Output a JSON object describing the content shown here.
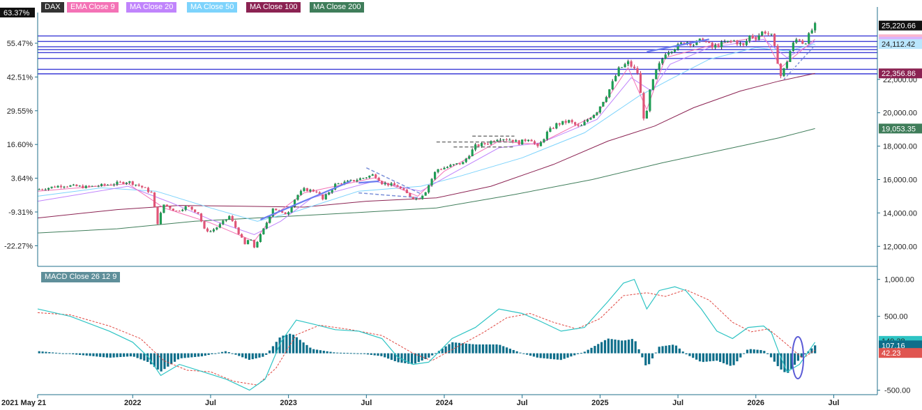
{
  "chart_data": [
    {
      "type": "candlestick",
      "symbol": "DAX",
      "legend": [
        {
          "label": "DAX",
          "color": "#333333"
        },
        {
          "label": "EMA  Close 9",
          "color": "#f472b6"
        },
        {
          "label": "MA  Close 20",
          "color": "#c084fc"
        },
        {
          "label": "MA  Close 50",
          "color": "#7dd3fc"
        },
        {
          "label": "MA  Close 100",
          "color": "#8b2252"
        },
        {
          "label": "MA  Close 200",
          "color": "#3f7d5a"
        }
      ],
      "y_right_ticks": [
        "12,000.00",
        "14,000.00",
        "16,000.00",
        "18,000.00",
        "20,000.00",
        "22,000.00"
      ],
      "y_left_ticks": [
        "55.47%",
        "42.51%",
        "29.55%",
        "16.60%",
        "3.64%",
        "-9.31%",
        "-22.27%"
      ],
      "ylim": [
        10800,
        26000
      ],
      "x_ticks": [
        {
          "label": "2021 May 21",
          "t": 2021.39
        },
        {
          "label": "2022",
          "t": 2022.0
        },
        {
          "label": "Jul",
          "t": 2022.5
        },
        {
          "label": "2023",
          "t": 2023.0
        },
        {
          "label": "Jul",
          "t": 2023.5
        },
        {
          "label": "2024",
          "t": 2024.0
        },
        {
          "label": "Jul",
          "t": 2024.5
        },
        {
          "label": "2025",
          "t": 2025.0
        },
        {
          "label": "Jul",
          "t": 2025.5
        },
        {
          "label": "2026",
          "t": 2026.0
        },
        {
          "label": "Jul",
          "t": 2026.5
        }
      ],
      "xlim": [
        2021.39,
        2026.78
      ],
      "close_path": [
        [
          2021.39,
          15400
        ],
        [
          2021.55,
          15650
        ],
        [
          2021.7,
          15550
        ],
        [
          2021.85,
          15700
        ],
        [
          2021.97,
          15880
        ],
        [
          2022.05,
          15600
        ],
        [
          2022.12,
          15200
        ],
        [
          2022.16,
          13400
        ],
        [
          2022.2,
          14500
        ],
        [
          2022.28,
          14100
        ],
        [
          2022.35,
          14400
        ],
        [
          2022.42,
          14000
        ],
        [
          2022.46,
          13000
        ],
        [
          2022.5,
          12900
        ],
        [
          2022.55,
          13200
        ],
        [
          2022.62,
          13800
        ],
        [
          2022.68,
          12800
        ],
        [
          2022.72,
          12100
        ],
        [
          2022.75,
          12500
        ],
        [
          2022.78,
          11950
        ],
        [
          2022.8,
          12300
        ],
        [
          2022.85,
          13200
        ],
        [
          2022.9,
          14300
        ],
        [
          2022.97,
          13900
        ],
        [
          2023.0,
          14100
        ],
        [
          2023.05,
          15000
        ],
        [
          2023.1,
          15400
        ],
        [
          2023.18,
          15300
        ],
        [
          2023.22,
          14800
        ],
        [
          2023.3,
          15700
        ],
        [
          2023.4,
          15900
        ],
        [
          2023.48,
          16100
        ],
        [
          2023.55,
          16300
        ],
        [
          2023.6,
          15800
        ],
        [
          2023.7,
          15600
        ],
        [
          2023.78,
          15000
        ],
        [
          2023.83,
          14800
        ],
        [
          2023.88,
          15300
        ],
        [
          2023.95,
          16600
        ],
        [
          2024.0,
          16700
        ],
        [
          2024.07,
          16900
        ],
        [
          2024.12,
          17000
        ],
        [
          2024.2,
          18000
        ],
        [
          2024.28,
          18200
        ],
        [
          2024.35,
          18500
        ],
        [
          2024.42,
          18400
        ],
        [
          2024.48,
          18200
        ],
        [
          2024.55,
          18500
        ],
        [
          2024.6,
          17900
        ],
        [
          2024.66,
          18800
        ],
        [
          2024.72,
          19300
        ],
        [
          2024.8,
          19500
        ],
        [
          2024.87,
          19100
        ],
        [
          2024.92,
          19600
        ],
        [
          2024.98,
          20100
        ],
        [
          2025.05,
          21200
        ],
        [
          2025.12,
          22600
        ],
        [
          2025.18,
          23000
        ],
        [
          2025.24,
          22400
        ],
        [
          2025.27,
          20500
        ],
        [
          2025.29,
          19000
        ],
        [
          2025.31,
          21000
        ],
        [
          2025.36,
          22500
        ],
        [
          2025.42,
          23600
        ],
        [
          2025.5,
          24000
        ],
        [
          2025.55,
          24300
        ],
        [
          2025.6,
          24100
        ],
        [
          2025.66,
          24400
        ],
        [
          2025.72,
          23900
        ],
        [
          2025.8,
          24200
        ],
        [
          2025.86,
          24300
        ],
        [
          2025.92,
          24000
        ],
        [
          2025.96,
          24600
        ],
        [
          2026.0,
          24500
        ],
        [
          2026.05,
          24900
        ],
        [
          2026.1,
          24600
        ],
        [
          2026.13,
          23500
        ],
        [
          2026.16,
          22200
        ],
        [
          2026.19,
          22800
        ],
        [
          2026.23,
          24000
        ],
        [
          2026.27,
          24500
        ],
        [
          2026.31,
          24100
        ],
        [
          2026.35,
          24800
        ],
        [
          2026.38,
          25220
        ]
      ],
      "ema9": [
        [
          2021.39,
          15300
        ],
        [
          2021.97,
          15750
        ],
        [
          2022.2,
          14300
        ],
        [
          2022.5,
          13400
        ],
        [
          2022.78,
          12300
        ],
        [
          2022.9,
          13800
        ],
        [
          2023.1,
          15200
        ],
        [
          2023.55,
          16100
        ],
        [
          2023.83,
          15000
        ],
        [
          2024.0,
          16500
        ],
        [
          2024.35,
          18300
        ],
        [
          2024.6,
          18100
        ],
        [
          2024.98,
          19900
        ],
        [
          2025.18,
          22700
        ],
        [
          2025.3,
          20200
        ],
        [
          2025.42,
          23300
        ],
        [
          2025.7,
          24000
        ],
        [
          2026.05,
          24600
        ],
        [
          2026.16,
          22700
        ],
        [
          2026.38,
          24401.57
        ]
      ],
      "ma20": [
        [
          2021.39,
          14700
        ],
        [
          2021.97,
          15600
        ],
        [
          2022.25,
          14600
        ],
        [
          2022.5,
          13600
        ],
        [
          2022.78,
          12700
        ],
        [
          2022.95,
          13500
        ],
        [
          2023.15,
          14900
        ],
        [
          2023.55,
          15900
        ],
        [
          2023.85,
          15300
        ],
        [
          2024.02,
          16200
        ],
        [
          2024.35,
          17900
        ],
        [
          2024.62,
          18200
        ],
        [
          2024.98,
          19600
        ],
        [
          2025.2,
          22100
        ],
        [
          2025.33,
          21300
        ],
        [
          2025.45,
          22900
        ],
        [
          2025.7,
          23900
        ],
        [
          2026.05,
          24400
        ],
        [
          2026.2,
          23300
        ],
        [
          2026.38,
          24256.56
        ]
      ],
      "ma50": [
        [
          2021.39,
          15000
        ],
        [
          2021.8,
          15500
        ],
        [
          2022.15,
          15300
        ],
        [
          2022.5,
          14300
        ],
        [
          2022.8,
          13500
        ],
        [
          2023.05,
          14100
        ],
        [
          2023.45,
          15300
        ],
        [
          2023.85,
          15600
        ],
        [
          2024.1,
          16200
        ],
        [
          2024.5,
          17300
        ],
        [
          2024.9,
          18800
        ],
        [
          2025.25,
          21000
        ],
        [
          2025.45,
          22000
        ],
        [
          2025.7,
          23200
        ],
        [
          2026.0,
          23900
        ],
        [
          2026.2,
          23700
        ],
        [
          2026.38,
          24112.42
        ]
      ],
      "ma100": [
        [
          2021.39,
          13700
        ],
        [
          2021.9,
          14200
        ],
        [
          2022.3,
          14450
        ],
        [
          2022.7,
          14400
        ],
        [
          2023.1,
          14350
        ],
        [
          2023.5,
          14700
        ],
        [
          2023.95,
          14900
        ],
        [
          2024.3,
          15600
        ],
        [
          2024.7,
          16900
        ],
        [
          2025.05,
          18300
        ],
        [
          2025.35,
          19200
        ],
        [
          2025.6,
          20300
        ],
        [
          2025.9,
          21300
        ],
        [
          2026.15,
          21900
        ],
        [
          2026.38,
          22356.86
        ]
      ],
      "ma200": [
        [
          2021.39,
          12800
        ],
        [
          2021.9,
          13050
        ],
        [
          2022.4,
          13500
        ],
        [
          2022.9,
          13750
        ],
        [
          2023.4,
          14000
        ],
        [
          2023.95,
          14300
        ],
        [
          2024.45,
          15100
        ],
        [
          2024.95,
          16000
        ],
        [
          2025.4,
          17000
        ],
        [
          2025.8,
          17800
        ],
        [
          2026.15,
          18500
        ],
        [
          2026.38,
          19053.35
        ]
      ],
      "horizontal_levels": [
        24600,
        24270,
        23950,
        23780,
        23600,
        23250,
        22600,
        22330
      ],
      "price_tags": [
        {
          "label": "25,220.66",
          "value": 25220.66,
          "bg": "#111111",
          "fg": "#ffffff"
        },
        {
          "label": "24,401.57",
          "value": 24401.57,
          "bg": "#fbb6ce",
          "fg": "#222222"
        },
        {
          "label": "24,256.56",
          "value": 24256.56,
          "bg": "#d8b4fe",
          "fg": "#222222"
        },
        {
          "label": "24,112.42",
          "value": 24112.42,
          "bg": "#bae6fd",
          "fg": "#222222"
        },
        {
          "label": "22,356.86",
          "value": 22356.86,
          "bg": "#8b2252",
          "fg": "#ffffff"
        },
        {
          "label": "19,053.35",
          "value": 19053.35,
          "bg": "#3f7d5a",
          "fg": "#ffffff"
        }
      ],
      "percent_tag": {
        "label": "63.37%",
        "value": 25220.66
      }
    },
    {
      "type": "macd",
      "legend": "MACD  Close 26 12 9",
      "y_ticks": [
        "1,000.00",
        "500.00",
        "-500.00"
      ],
      "ylim": [
        -560,
        1120
      ],
      "macd_line": [
        [
          2021.39,
          600
        ],
        [
          2021.6,
          500
        ],
        [
          2021.85,
          300
        ],
        [
          2022.0,
          150
        ],
        [
          2022.1,
          -50
        ],
        [
          2022.18,
          -300
        ],
        [
          2022.3,
          -150
        ],
        [
          2022.45,
          -250
        ],
        [
          2022.6,
          -350
        ],
        [
          2022.75,
          -500
        ],
        [
          2022.85,
          -350
        ],
        [
          2022.95,
          150
        ],
        [
          2023.05,
          450
        ],
        [
          2023.15,
          400
        ],
        [
          2023.3,
          320
        ],
        [
          2023.45,
          300
        ],
        [
          2023.6,
          200
        ],
        [
          2023.7,
          -50
        ],
        [
          2023.8,
          -150
        ],
        [
          2023.9,
          -120
        ],
        [
          2024.05,
          200
        ],
        [
          2024.2,
          350
        ],
        [
          2024.35,
          600
        ],
        [
          2024.5,
          540
        ],
        [
          2024.6,
          450
        ],
        [
          2024.75,
          300
        ],
        [
          2024.9,
          350
        ],
        [
          2025.05,
          700
        ],
        [
          2025.15,
          950
        ],
        [
          2025.22,
          1000
        ],
        [
          2025.3,
          600
        ],
        [
          2025.38,
          850
        ],
        [
          2025.48,
          900
        ],
        [
          2025.55,
          850
        ],
        [
          2025.65,
          600
        ],
        [
          2025.75,
          300
        ],
        [
          2025.85,
          200
        ],
        [
          2025.95,
          350
        ],
        [
          2026.05,
          370
        ],
        [
          2026.1,
          280
        ],
        [
          2026.15,
          0
        ],
        [
          2026.2,
          -250
        ],
        [
          2026.28,
          -150
        ],
        [
          2026.38,
          149.38
        ]
      ],
      "signal_line": [
        [
          2021.39,
          550
        ],
        [
          2021.6,
          520
        ],
        [
          2021.85,
          370
        ],
        [
          2022.05,
          200
        ],
        [
          2022.2,
          -100
        ],
        [
          2022.35,
          -230
        ],
        [
          2022.5,
          -250
        ],
        [
          2022.65,
          -380
        ],
        [
          2022.8,
          -430
        ],
        [
          2022.92,
          -200
        ],
        [
          2023.05,
          250
        ],
        [
          2023.2,
          380
        ],
        [
          2023.4,
          320
        ],
        [
          2023.6,
          240
        ],
        [
          2023.8,
          0
        ],
        [
          2023.92,
          -100
        ],
        [
          2024.05,
          50
        ],
        [
          2024.25,
          280
        ],
        [
          2024.4,
          480
        ],
        [
          2024.55,
          540
        ],
        [
          2024.7,
          420
        ],
        [
          2024.85,
          330
        ],
        [
          2025.0,
          470
        ],
        [
          2025.15,
          780
        ],
        [
          2025.3,
          820
        ],
        [
          2025.42,
          770
        ],
        [
          2025.55,
          860
        ],
        [
          2025.7,
          720
        ],
        [
          2025.85,
          420
        ],
        [
          2025.97,
          290
        ],
        [
          2026.08,
          330
        ],
        [
          2026.2,
          120
        ],
        [
          2026.3,
          -70
        ],
        [
          2026.38,
          42.23
        ]
      ],
      "histogram": [
        [
          2021.39,
          30
        ],
        [
          2021.6,
          -10
        ],
        [
          2021.85,
          -60
        ],
        [
          2022.0,
          -40
        ],
        [
          2022.1,
          -120
        ],
        [
          2022.18,
          -250
        ],
        [
          2022.3,
          -70
        ],
        [
          2022.45,
          -40
        ],
        [
          2022.6,
          30
        ],
        [
          2022.75,
          -90
        ],
        [
          2022.85,
          -40
        ],
        [
          2022.95,
          230
        ],
        [
          2023.02,
          270
        ],
        [
          2023.15,
          60
        ],
        [
          2023.3,
          10
        ],
        [
          2023.45,
          0
        ],
        [
          2023.6,
          -40
        ],
        [
          2023.7,
          -120
        ],
        [
          2023.8,
          -150
        ],
        [
          2023.9,
          -60
        ],
        [
          2024.05,
          150
        ],
        [
          2024.2,
          120
        ],
        [
          2024.35,
          120
        ],
        [
          2024.5,
          0
        ],
        [
          2024.6,
          -60
        ],
        [
          2024.75,
          -90
        ],
        [
          2024.9,
          20
        ],
        [
          2025.05,
          200
        ],
        [
          2025.15,
          170
        ],
        [
          2025.22,
          200
        ],
        [
          2025.3,
          -200
        ],
        [
          2025.38,
          90
        ],
        [
          2025.48,
          120
        ],
        [
          2025.55,
          -10
        ],
        [
          2025.65,
          -120
        ],
        [
          2025.75,
          -100
        ],
        [
          2025.85,
          -180
        ],
        [
          2025.95,
          60
        ],
        [
          2026.05,
          40
        ],
        [
          2026.1,
          -60
        ],
        [
          2026.15,
          -200
        ],
        [
          2026.2,
          -280
        ],
        [
          2026.28,
          -80
        ],
        [
          2026.38,
          107.16
        ]
      ],
      "value_tags": [
        {
          "label": "149.38",
          "value": 149.38,
          "bg": "#2ec4c4",
          "fg": "#222222"
        },
        {
          "label": "107.16",
          "value": 107.16,
          "bg": "#0e6e8a",
          "fg": "#ffffff"
        },
        {
          "label": "42.23",
          "value": 42.23,
          "bg": "#e05550",
          "fg": "#ffffff"
        }
      ]
    }
  ]
}
